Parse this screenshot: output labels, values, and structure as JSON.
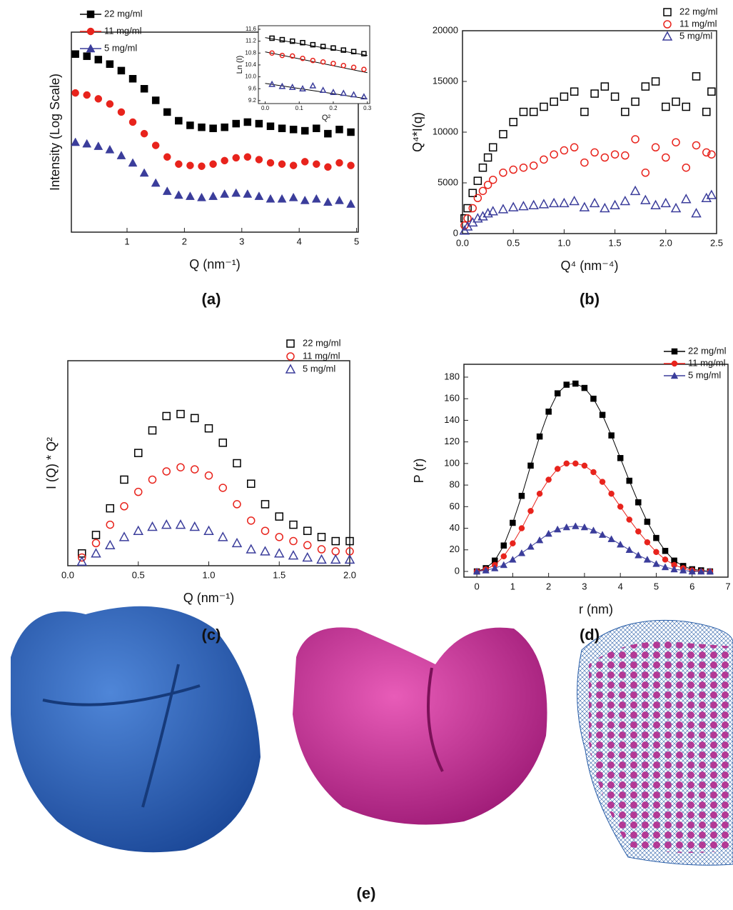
{
  "chart_data": [
    {
      "type": "scatter",
      "panel_label": "(a)",
      "xlabel": "Q (nm⁻¹)",
      "ylabel": "Intensity (Log Scale)",
      "yscale": "log",
      "xlim": [
        0.03,
        5.03
      ],
      "ylim": [
        1,
        1000000
      ],
      "xticks": [
        1,
        2,
        3,
        4,
        5
      ],
      "legend": "upper left",
      "x": [
        0.1,
        0.3,
        0.5,
        0.7,
        0.9,
        1.1,
        1.3,
        1.5,
        1.7,
        1.9,
        2.1,
        2.3,
        2.5,
        2.7,
        2.9,
        3.1,
        3.3,
        3.5,
        3.7,
        3.9,
        4.1,
        4.3,
        4.5,
        4.7,
        4.9
      ],
      "series": [
        {
          "name": "22 mg/ml",
          "color": "#000000",
          "marker": "square",
          "filled": true,
          "values": [
            220000,
            190000,
            150000,
            110000,
            70000,
            40000,
            20000,
            9000,
            4000,
            2200,
            1600,
            1400,
            1300,
            1400,
            1800,
            2000,
            1800,
            1500,
            1300,
            1200,
            1100,
            1300,
            900,
            1200,
            1000
          ]
        },
        {
          "name": "11 mg/ml",
          "color": "#e8231c",
          "marker": "circle",
          "filled": true,
          "values": [
            15000,
            13000,
            10000,
            7000,
            4000,
            2000,
            900,
            400,
            180,
            110,
            100,
            95,
            110,
            140,
            170,
            180,
            150,
            120,
            110,
            100,
            130,
            110,
            90,
            120,
            100
          ]
        },
        {
          "name": "5 mg/ml",
          "color": "#3b3d9b",
          "marker": "triangle",
          "filled": true,
          "values": [
            500,
            450,
            380,
            300,
            200,
            120,
            60,
            30,
            17,
            13,
            12,
            11,
            12,
            14,
            15,
            14,
            12,
            10,
            10,
            11,
            9,
            10,
            8,
            9,
            7
          ]
        }
      ]
    },
    {
      "type": "scatter",
      "inset": true,
      "xlabel": "Q²",
      "ylabel": "Ln (I)",
      "xlim": [
        -0.02,
        0.307
      ],
      "ylim": [
        9.1,
        11.72
      ],
      "xticks": [
        {
          "value": 0,
          "label": "0.0"
        },
        0.1,
        0.2,
        0.3
      ],
      "yticks": [
        9.2,
        9.6,
        {
          "value": 10,
          "label": "10.0"
        },
        10.4,
        10.8,
        11.2,
        11.6
      ],
      "x": [
        0.02,
        0.05,
        0.08,
        0.11,
        0.14,
        0.17,
        0.2,
        0.23,
        0.26,
        0.29
      ],
      "series": [
        {
          "name": "22 mg/ml",
          "color": "#000000",
          "marker": "square",
          "filled": false,
          "values": [
            11.3,
            11.25,
            11.2,
            11.15,
            11.08,
            11.02,
            10.97,
            10.9,
            10.85,
            10.78
          ],
          "fit": {
            "x": [
              0,
              0.3
            ],
            "values": [
              11.32,
              10.72
            ]
          }
        },
        {
          "name": "11 mg/ml",
          "color": "#e8231c",
          "marker": "circle",
          "filled": false,
          "values": [
            10.8,
            10.72,
            10.7,
            10.62,
            10.55,
            10.5,
            10.45,
            10.38,
            10.32,
            10.25
          ],
          "fit": {
            "x": [
              0,
              0.3
            ],
            "values": [
              10.84,
              10.14
            ]
          }
        },
        {
          "name": "5 mg/ml",
          "color": "#3b3d9b",
          "marker": "triangle",
          "filled": false,
          "values": [
            9.75,
            9.68,
            9.65,
            9.6,
            9.7,
            9.55,
            9.48,
            9.45,
            9.4,
            9.33
          ],
          "fit": {
            "x": [
              0,
              0.3
            ],
            "values": [
              9.78,
              9.26
            ]
          }
        }
      ]
    },
    {
      "type": "scatter",
      "panel_label": "(b)",
      "xlabel": "Q⁴ (nm⁻⁴)",
      "ylabel": "Q⁴*I(q)",
      "xlim": [
        0,
        2.5
      ],
      "ylim": [
        0,
        20000
      ],
      "legend": "upper right",
      "xticks": [
        {
          "value": 0,
          "label": "0.0"
        },
        0.5,
        {
          "value": 1,
          "label": "1.0"
        },
        1.5,
        {
          "value": 2,
          "label": "2.0"
        },
        2.5
      ],
      "yticks": [
        0,
        5000,
        10000,
        15000,
        20000
      ],
      "x": [
        0.02,
        0.05,
        0.1,
        0.15,
        0.2,
        0.25,
        0.3,
        0.4,
        0.5,
        0.6,
        0.7,
        0.8,
        0.9,
        1.0,
        1.1,
        1.2,
        1.3,
        1.4,
        1.5,
        1.6,
        1.7,
        1.8,
        1.9,
        2.0,
        2.1,
        2.2,
        2.3,
        2.4,
        2.45
      ],
      "series": [
        {
          "name": "22 mg/ml",
          "color": "#000000",
          "marker": "square",
          "filled": false,
          "values": [
            1500,
            2500,
            4000,
            5200,
            6500,
            7500,
            8500,
            9800,
            11000,
            12000,
            12000,
            12500,
            13000,
            13500,
            14000,
            12000,
            13800,
            14500,
            13500,
            12000,
            13000,
            14500,
            15000,
            12500,
            13000,
            12500,
            15500,
            12000,
            14000
          ]
        },
        {
          "name": "11 mg/ml",
          "color": "#e8231c",
          "marker": "circle",
          "filled": false,
          "values": [
            800,
            1500,
            2500,
            3500,
            4200,
            4800,
            5300,
            6000,
            6300,
            6500,
            6700,
            7300,
            7800,
            8200,
            8500,
            7000,
            8000,
            7500,
            7800,
            7700,
            9300,
            6000,
            8500,
            7500,
            9000,
            6500,
            8700,
            8000,
            7800
          ]
        },
        {
          "name": "5 mg/ml",
          "color": "#3b3d9b",
          "marker": "triangle",
          "filled": false,
          "values": [
            300,
            700,
            1100,
            1500,
            1700,
            2000,
            2200,
            2400,
            2600,
            2700,
            2800,
            2900,
            3000,
            3000,
            3200,
            2600,
            3000,
            2500,
            2800,
            3200,
            4200,
            3300,
            2800,
            3000,
            2500,
            3400,
            2000,
            3500,
            3800
          ]
        }
      ]
    },
    {
      "type": "scatter",
      "panel_label": "(c)",
      "xlabel": "Q (nm⁻¹)",
      "ylabel": "I (Q) * Q²",
      "xlim": [
        0,
        2
      ],
      "ylim": [
        0,
        100
      ],
      "legend": "upper right",
      "xticks": [
        {
          "value": 0,
          "label": "0.0"
        },
        0.5,
        {
          "value": 1,
          "label": "1.0"
        },
        1.5,
        {
          "value": 2,
          "label": "2.0"
        }
      ],
      "x": [
        0.1,
        0.2,
        0.3,
        0.4,
        0.5,
        0.6,
        0.7,
        0.8,
        0.9,
        1.0,
        1.1,
        1.2,
        1.3,
        1.4,
        1.5,
        1.6,
        1.7,
        1.8,
        1.9,
        2.0
      ],
      "series": [
        {
          "name": "22 mg/ml",
          "color": "#000000",
          "marker": "square",
          "filled": false,
          "values": [
            6,
            15,
            28,
            42,
            55,
            66,
            73,
            74,
            72,
            67,
            60,
            50,
            40,
            30,
            24,
            20,
            17,
            14,
            12,
            12
          ]
        },
        {
          "name": "11 mg/ml",
          "color": "#e8231c",
          "marker": "circle",
          "filled": false,
          "values": [
            4,
            11,
            20,
            29,
            36,
            42,
            46,
            48,
            47,
            44,
            38,
            30,
            22,
            17,
            14,
            12,
            10,
            8,
            7,
            7
          ]
        },
        {
          "name": "5 mg/ml",
          "color": "#3b3d9b",
          "marker": "triangle",
          "filled": false,
          "values": [
            2,
            6,
            10,
            14,
            17,
            19,
            20,
            20,
            19,
            17,
            14,
            11,
            8,
            7,
            6,
            5,
            4,
            3,
            3,
            3
          ]
        }
      ]
    },
    {
      "type": "line",
      "panel_label": "(d)",
      "xlabel": "r (nm)",
      "ylabel": "P (r)",
      "xlim": [
        -0.36,
        7
      ],
      "ylim": [
        -5.3,
        191.9
      ],
      "legend": "upper right",
      "xticks": [
        0,
        1,
        2,
        3,
        4,
        5,
        6,
        7
      ],
      "yticks": [
        0,
        20,
        40,
        60,
        80,
        100,
        120,
        140,
        160,
        180
      ],
      "x": [
        0,
        0.25,
        0.5,
        0.75,
        1,
        1.25,
        1.5,
        1.75,
        2,
        2.25,
        2.5,
        2.75,
        3,
        3.25,
        3.5,
        3.75,
        4,
        4.25,
        4.5,
        4.75,
        5,
        5.25,
        5.5,
        5.75,
        6,
        6.25,
        6.5
      ],
      "series": [
        {
          "name": "22 mg/ml",
          "color": "#000000",
          "marker": "square",
          "filled": true,
          "values": [
            0,
            3,
            10,
            24,
            45,
            70,
            98,
            125,
            148,
            165,
            173,
            174,
            170,
            160,
            145,
            126,
            105,
            84,
            64,
            46,
            31,
            19,
            10,
            5,
            2,
            1,
            0
          ]
        },
        {
          "name": "11 mg/ml",
          "color": "#e8231c",
          "marker": "circle",
          "filled": true,
          "values": [
            0,
            2,
            6,
            14,
            26,
            40,
            56,
            72,
            85,
            95,
            100,
            100,
            98,
            92,
            83,
            72,
            60,
            48,
            37,
            27,
            18,
            11,
            6,
            3,
            1,
            0,
            0
          ]
        },
        {
          "name": "5 mg/ml",
          "color": "#3b3d9b",
          "marker": "triangle",
          "filled": true,
          "values": [
            0,
            1,
            3,
            6,
            11,
            17,
            23,
            29,
            35,
            39,
            41,
            42,
            41,
            38,
            34,
            30,
            25,
            20,
            15,
            11,
            7,
            4,
            2,
            1,
            0,
            0,
            0
          ]
        }
      ]
    },
    {
      "type": "image",
      "panel_label": "(e)"
    }
  ]
}
